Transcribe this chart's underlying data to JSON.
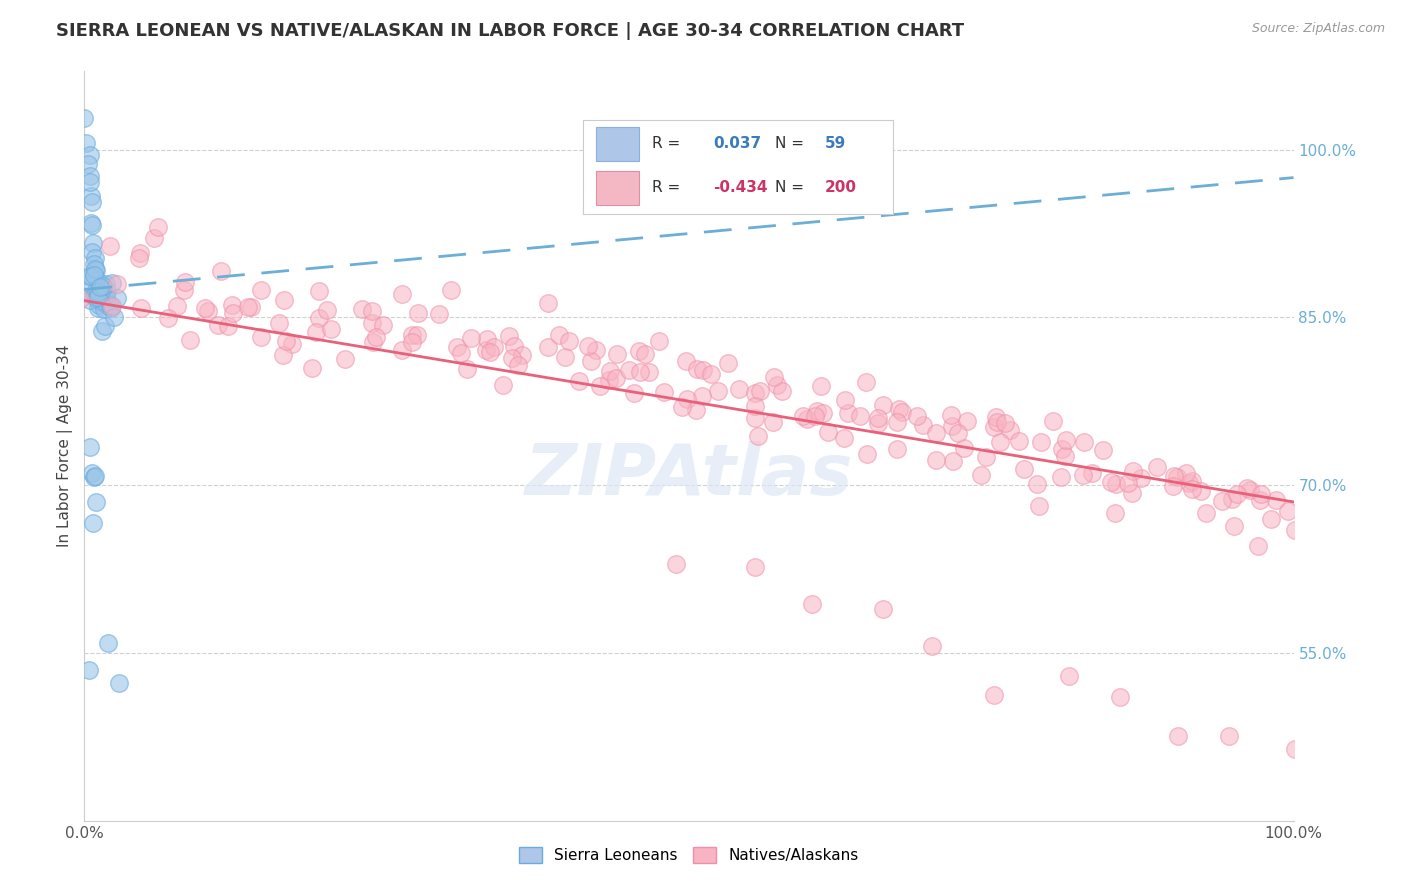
{
  "title": "SIERRA LEONEAN VS NATIVE/ALASKAN IN LABOR FORCE | AGE 30-34 CORRELATION CHART",
  "source_text": "Source: ZipAtlas.com",
  "ylabel": "In Labor Force | Age 30-34",
  "xlim": [
    0.0,
    1.0
  ],
  "ylim": [
    0.4,
    1.07
  ],
  "xticks": [
    0.0,
    1.0
  ],
  "xticklabels": [
    "0.0%",
    "100.0%"
  ],
  "yticks_right": [
    0.55,
    0.7,
    0.85,
    1.0
  ],
  "yticklabels_right": [
    "55.0%",
    "70.0%",
    "85.0%",
    "100.0%"
  ],
  "grid_color": "#d0d0d0",
  "background_color": "#ffffff",
  "title_fontsize": 13,
  "axis_label_fontsize": 11,
  "tick_fontsize": 11,
  "legend_R1": "0.037",
  "legend_N1": "59",
  "legend_R2": "-0.434",
  "legend_N2": "200",
  "blue_trend_x": [
    0.0,
    1.0
  ],
  "blue_trend_y": [
    0.875,
    0.975
  ],
  "pink_trend_x": [
    0.0,
    1.0
  ],
  "pink_trend_y": [
    0.865,
    0.685
  ],
  "scatter_blue_x": [
    0.001,
    0.002,
    0.003,
    0.003,
    0.004,
    0.005,
    0.005,
    0.006,
    0.006,
    0.007,
    0.007,
    0.008,
    0.008,
    0.009,
    0.009,
    0.01,
    0.01,
    0.011,
    0.011,
    0.012,
    0.012,
    0.013,
    0.013,
    0.014,
    0.014,
    0.015,
    0.015,
    0.016,
    0.016,
    0.017,
    0.018,
    0.019,
    0.02,
    0.021,
    0.022,
    0.023,
    0.024,
    0.025,
    0.003,
    0.004,
    0.005,
    0.006,
    0.007,
    0.008,
    0.009,
    0.01,
    0.011,
    0.012,
    0.013,
    0.014,
    0.005,
    0.006,
    0.007,
    0.008,
    0.009,
    0.01,
    0.02,
    0.03,
    0.004
  ],
  "scatter_blue_y": [
    1.02,
    1.01,
    1.0,
    0.99,
    0.98,
    0.97,
    0.96,
    0.95,
    0.94,
    0.93,
    0.92,
    0.91,
    0.9,
    0.89,
    0.88,
    0.87,
    0.86,
    0.88,
    0.87,
    0.86,
    0.88,
    0.87,
    0.86,
    0.85,
    0.84,
    0.87,
    0.86,
    0.85,
    0.87,
    0.86,
    0.87,
    0.87,
    0.86,
    0.87,
    0.86,
    0.87,
    0.86,
    0.87,
    0.89,
    0.88,
    0.88,
    0.87,
    0.88,
    0.89,
    0.88,
    0.87,
    0.87,
    0.87,
    0.86,
    0.87,
    0.72,
    0.7,
    0.68,
    0.71,
    0.73,
    0.69,
    0.55,
    0.53,
    0.54
  ],
  "scatter_pink_x": [
    0.02,
    0.04,
    0.05,
    0.06,
    0.07,
    0.08,
    0.09,
    0.1,
    0.11,
    0.12,
    0.13,
    0.14,
    0.15,
    0.16,
    0.17,
    0.18,
    0.19,
    0.2,
    0.21,
    0.22,
    0.23,
    0.24,
    0.25,
    0.26,
    0.27,
    0.28,
    0.29,
    0.3,
    0.31,
    0.32,
    0.33,
    0.34,
    0.35,
    0.36,
    0.37,
    0.38,
    0.39,
    0.4,
    0.41,
    0.42,
    0.43,
    0.44,
    0.45,
    0.46,
    0.47,
    0.48,
    0.49,
    0.5,
    0.51,
    0.52,
    0.53,
    0.54,
    0.55,
    0.56,
    0.57,
    0.58,
    0.59,
    0.6,
    0.61,
    0.62,
    0.63,
    0.64,
    0.65,
    0.66,
    0.67,
    0.68,
    0.69,
    0.7,
    0.71,
    0.72,
    0.73,
    0.74,
    0.75,
    0.76,
    0.77,
    0.78,
    0.79,
    0.8,
    0.81,
    0.82,
    0.83,
    0.84,
    0.85,
    0.86,
    0.87,
    0.88,
    0.89,
    0.9,
    0.91,
    0.92,
    0.93,
    0.94,
    0.95,
    0.96,
    0.97,
    0.98,
    0.99,
    1.0,
    0.03,
    0.08,
    0.13,
    0.18,
    0.23,
    0.28,
    0.33,
    0.38,
    0.43,
    0.48,
    0.53,
    0.58,
    0.63,
    0.68,
    0.73,
    0.78,
    0.83,
    0.88,
    0.93,
    0.98,
    0.06,
    0.11,
    0.16,
    0.21,
    0.26,
    0.31,
    0.36,
    0.41,
    0.46,
    0.51,
    0.56,
    0.61,
    0.66,
    0.71,
    0.76,
    0.81,
    0.86,
    0.91,
    0.96,
    0.05,
    0.1,
    0.15,
    0.2,
    0.25,
    0.3,
    0.35,
    0.4,
    0.45,
    0.5,
    0.55,
    0.6,
    0.65,
    0.7,
    0.75,
    0.8,
    0.85,
    0.9,
    0.95,
    0.07,
    0.12,
    0.17,
    0.22,
    0.27,
    0.32,
    0.37,
    0.42,
    0.47,
    0.52,
    0.57,
    0.62,
    0.67,
    0.72,
    0.77,
    0.82,
    0.87,
    0.92,
    0.97,
    0.02,
    0.5,
    0.55,
    0.6,
    0.65,
    0.7,
    0.75,
    0.8,
    0.85,
    0.9,
    0.95,
    0.4,
    0.45,
    0.5,
    0.55,
    0.6,
    0.65,
    0.7,
    0.75,
    0.8,
    0.85,
    0.9,
    0.95,
    1.0,
    0.01
  ],
  "scatter_pink_y": [
    0.87,
    0.9,
    0.88,
    0.92,
    0.86,
    0.87,
    0.85,
    0.88,
    0.83,
    0.86,
    0.87,
    0.84,
    0.83,
    0.85,
    0.82,
    0.84,
    0.81,
    0.86,
    0.82,
    0.84,
    0.83,
    0.85,
    0.82,
    0.83,
    0.81,
    0.85,
    0.84,
    0.83,
    0.82,
    0.81,
    0.84,
    0.82,
    0.83,
    0.81,
    0.8,
    0.84,
    0.82,
    0.81,
    0.8,
    0.83,
    0.81,
    0.82,
    0.8,
    0.82,
    0.81,
    0.8,
    0.79,
    0.8,
    0.79,
    0.78,
    0.81,
    0.79,
    0.8,
    0.78,
    0.79,
    0.77,
    0.78,
    0.79,
    0.77,
    0.78,
    0.76,
    0.77,
    0.78,
    0.76,
    0.75,
    0.77,
    0.76,
    0.75,
    0.74,
    0.76,
    0.75,
    0.74,
    0.73,
    0.75,
    0.74,
    0.73,
    0.72,
    0.74,
    0.73,
    0.72,
    0.71,
    0.73,
    0.72,
    0.71,
    0.7,
    0.72,
    0.71,
    0.7,
    0.69,
    0.71,
    0.7,
    0.69,
    0.68,
    0.7,
    0.69,
    0.68,
    0.67,
    0.66,
    0.89,
    0.87,
    0.85,
    0.88,
    0.84,
    0.86,
    0.82,
    0.84,
    0.8,
    0.82,
    0.8,
    0.79,
    0.78,
    0.77,
    0.76,
    0.74,
    0.73,
    0.71,
    0.7,
    0.68,
    0.91,
    0.87,
    0.86,
    0.84,
    0.85,
    0.83,
    0.81,
    0.83,
    0.8,
    0.78,
    0.79,
    0.76,
    0.77,
    0.75,
    0.74,
    0.72,
    0.71,
    0.7,
    0.68,
    0.9,
    0.88,
    0.86,
    0.87,
    0.83,
    0.85,
    0.81,
    0.82,
    0.8,
    0.79,
    0.78,
    0.76,
    0.75,
    0.74,
    0.73,
    0.72,
    0.7,
    0.69,
    0.67,
    0.86,
    0.85,
    0.83,
    0.84,
    0.82,
    0.81,
    0.82,
    0.79,
    0.8,
    0.78,
    0.77,
    0.76,
    0.75,
    0.73,
    0.74,
    0.72,
    0.71,
    0.69,
    0.67,
    0.92,
    0.77,
    0.75,
    0.76,
    0.74,
    0.73,
    0.72,
    0.71,
    0.7,
    0.69,
    0.68,
    0.81,
    0.79,
    0.63,
    0.62,
    0.6,
    0.58,
    0.56,
    0.54,
    0.53,
    0.51,
    0.49,
    0.47,
    0.45,
    0.88
  ]
}
